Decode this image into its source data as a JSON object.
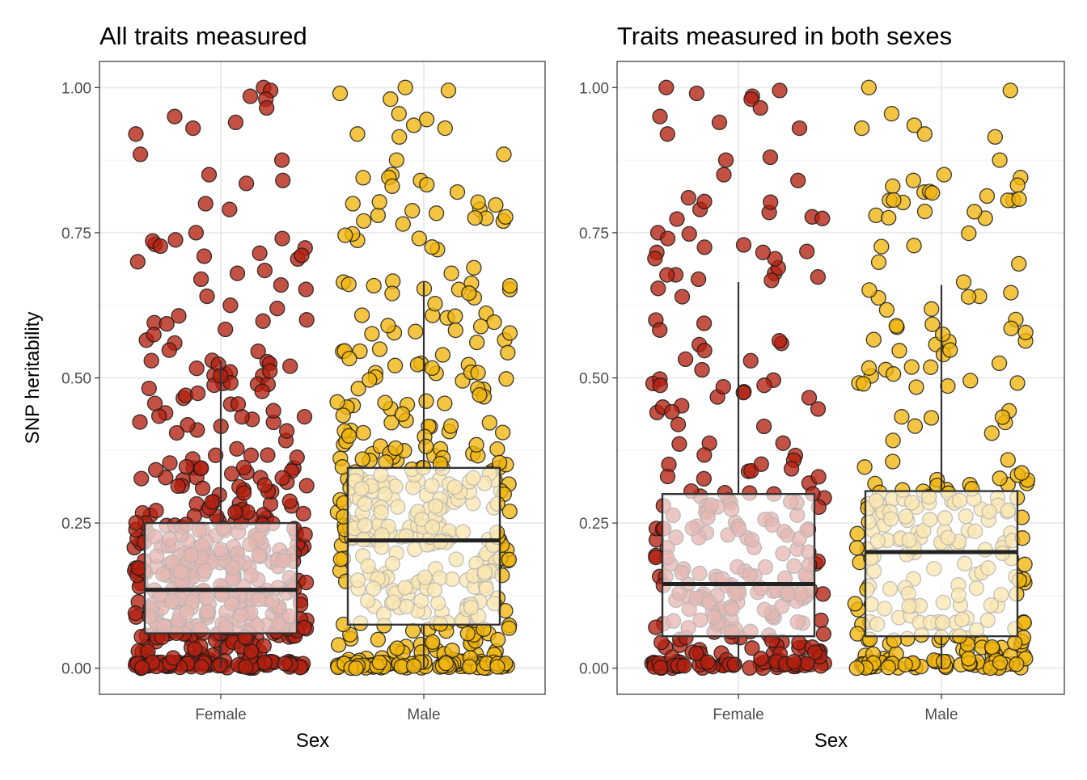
{
  "chart_data": [
    {
      "type": "boxplot-jitter",
      "title": "All traits measured",
      "xlabel": "Sex",
      "ylabel": "SNP heritability",
      "categories": [
        "Female",
        "Male"
      ],
      "ylim": [
        -0.045,
        1.045
      ],
      "yticks": [
        "0.00",
        "0.25",
        "0.50",
        "0.75",
        "1.00"
      ],
      "grid": true,
      "series": [
        {
          "category": "Female",
          "color": "#b2200f",
          "box": {
            "q1": 0.06,
            "median": 0.135,
            "q3": 0.25,
            "whisker_low": 0.0,
            "whisker_high": 0.53
          },
          "points_count": 520,
          "outliers_sample": [
            1.0,
            0.995,
            0.985,
            0.98,
            0.965,
            0.95,
            0.94,
            0.93,
            0.92,
            0.885,
            0.875,
            0.85,
            0.84,
            0.835,
            0.8,
            0.79,
            0.75,
            0.74,
            0.73,
            0.7,
            0.685,
            0.68,
            0.67,
            0.66,
            0.625,
            0.6,
            0.595,
            0.565,
            0.56,
            0.53
          ]
        },
        {
          "category": "Male",
          "color": "#f0b50e",
          "box": {
            "q1": 0.075,
            "median": 0.22,
            "q3": 0.345,
            "whisker_low": 0.0,
            "whisker_high": 0.665
          },
          "points_count": 470,
          "outliers_sample": [
            1.0,
            0.995,
            0.99,
            0.98,
            0.955,
            0.945,
            0.935,
            0.93,
            0.92,
            0.915,
            0.885,
            0.875,
            0.85,
            0.845,
            0.84,
            0.83,
            0.82,
            0.8,
            0.79,
            0.78,
            0.775,
            0.77,
            0.765,
            0.68,
            0.665
          ]
        }
      ]
    },
    {
      "type": "boxplot-jitter",
      "title": "Traits measured in both sexes",
      "xlabel": "Sex",
      "ylabel": "",
      "categories": [
        "Female",
        "Male"
      ],
      "ylim": [
        -0.045,
        1.045
      ],
      "yticks": [
        "0.00",
        "0.25",
        "0.50",
        "0.75",
        "1.00"
      ],
      "grid": true,
      "series": [
        {
          "category": "Female",
          "color": "#b2200f",
          "box": {
            "q1": 0.055,
            "median": 0.145,
            "q3": 0.3,
            "whisker_low": 0.0,
            "whisker_high": 0.665
          },
          "points_count": 300,
          "outliers_sample": [
            1.0,
            0.995,
            0.99,
            0.985,
            0.98,
            0.965,
            0.95,
            0.94,
            0.93,
            0.92,
            0.88,
            0.875,
            0.85,
            0.84,
            0.79,
            0.785,
            0.75,
            0.74,
            0.725,
            0.68,
            0.67
          ]
        },
        {
          "category": "Male",
          "color": "#f0b50e",
          "box": {
            "q1": 0.055,
            "median": 0.2,
            "q3": 0.305,
            "whisker_low": 0.0,
            "whisker_high": 0.66
          },
          "points_count": 300,
          "outliers_sample": [
            1.0,
            0.995,
            0.955,
            0.935,
            0.93,
            0.92,
            0.915,
            0.875,
            0.85,
            0.845,
            0.84,
            0.83,
            0.82,
            0.78,
            0.775,
            0.665
          ]
        }
      ]
    }
  ]
}
